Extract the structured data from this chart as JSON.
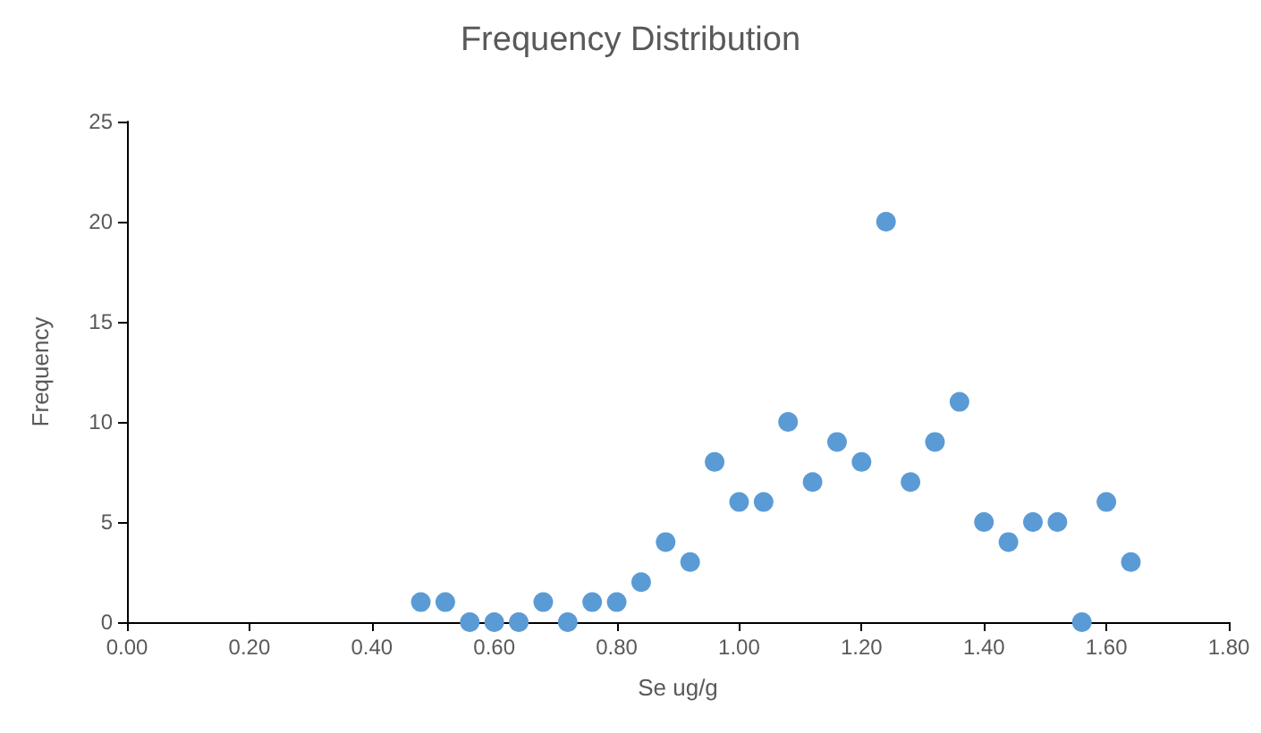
{
  "chart_data": {
    "type": "scatter",
    "title": "Frequency Distribution",
    "xlabel": "Se ug/g",
    "ylabel": "Frequency",
    "x": [
      0.48,
      0.52,
      0.56,
      0.6,
      0.64,
      0.68,
      0.72,
      0.76,
      0.8,
      0.84,
      0.88,
      0.92,
      0.96,
      1.0,
      1.04,
      1.08,
      1.12,
      1.16,
      1.2,
      1.24,
      1.28,
      1.32,
      1.36,
      1.4,
      1.44,
      1.48,
      1.52,
      1.56,
      1.6,
      1.64
    ],
    "series": [
      {
        "color": "#5b9bd5",
        "values": [
          1,
          1,
          0,
          0,
          0,
          1,
          0,
          1,
          1,
          2,
          4,
          3,
          8,
          6,
          6,
          10,
          7,
          9,
          8,
          20,
          7,
          9,
          11,
          5,
          4,
          5,
          5,
          0,
          6,
          3
        ]
      }
    ],
    "xlim": [
      0,
      1.8
    ],
    "xticks": [
      {
        "value": 0,
        "label": "0.00"
      },
      {
        "value": 0.2,
        "label": "0.20"
      },
      {
        "value": 0.4,
        "label": "0.40"
      },
      {
        "value": 0.6,
        "label": "0.60"
      },
      {
        "value": 0.8,
        "label": "0.80"
      },
      {
        "value": 1.0,
        "label": "1.00"
      },
      {
        "value": 1.2,
        "label": "1.20"
      },
      {
        "value": 1.4,
        "label": "1.40"
      },
      {
        "value": 1.6,
        "label": "1.60"
      },
      {
        "value": 1.8,
        "label": "1.80"
      }
    ],
    "ylim": [
      0,
      25
    ],
    "yticks": [
      0,
      5,
      10,
      15,
      20,
      25
    ],
    "grid": false,
    "marker": "circle"
  }
}
